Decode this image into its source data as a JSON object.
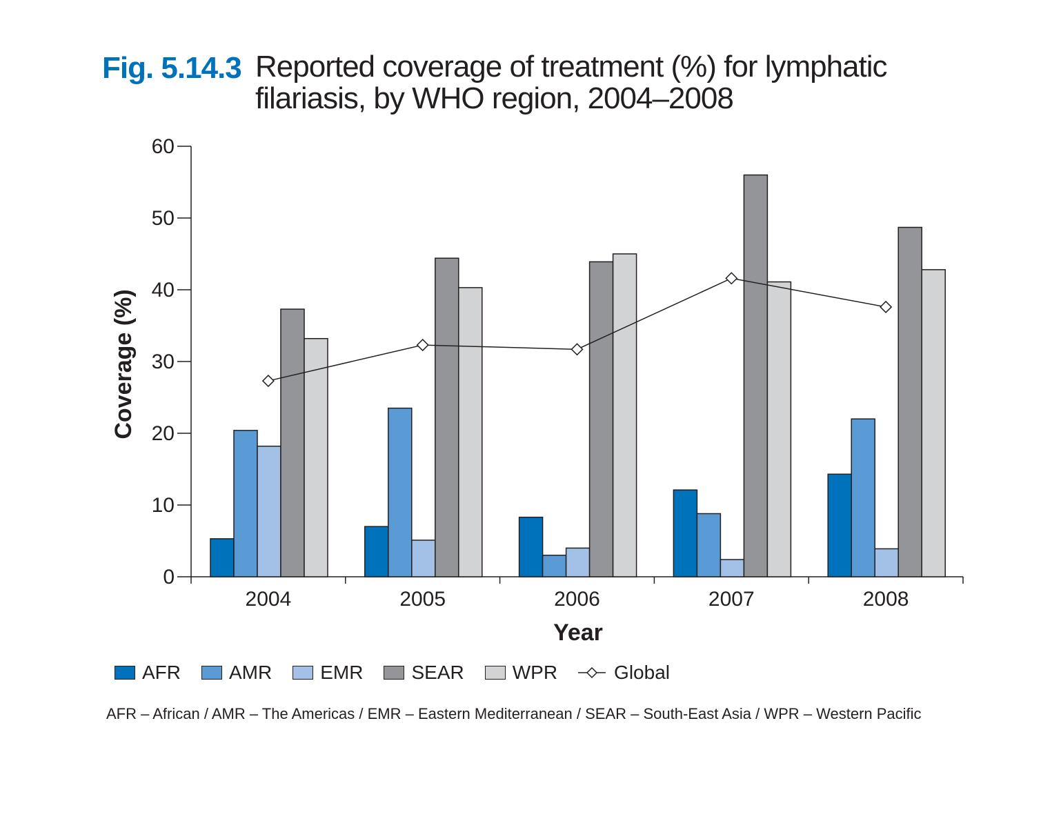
{
  "figure": {
    "number": "Fig. 5.14.3",
    "title": "Reported coverage of treatment (%) for lymphatic filariasis, by WHO region, 2004–2008"
  },
  "chart_data": {
    "type": "bar",
    "categories": [
      "2004",
      "2005",
      "2006",
      "2007",
      "2008"
    ],
    "series": [
      {
        "name": "AFR",
        "kind": "bar",
        "color": "#0072bc",
        "values": [
          5.3,
          7.0,
          8.3,
          12.1,
          14.3
        ]
      },
      {
        "name": "AMR",
        "kind": "bar",
        "color": "#5b9bd5",
        "values": [
          20.4,
          23.5,
          3.0,
          8.8,
          22.0
        ]
      },
      {
        "name": "EMR",
        "kind": "bar",
        "color": "#a3c1e6",
        "values": [
          18.2,
          5.1,
          4.0,
          2.4,
          3.9
        ]
      },
      {
        "name": "SEAR",
        "kind": "bar",
        "color": "#939598",
        "values": [
          37.3,
          44.4,
          43.9,
          56.0,
          48.7
        ]
      },
      {
        "name": "WPR",
        "kind": "bar",
        "color": "#d1d3d4",
        "values": [
          33.2,
          40.3,
          45.0,
          41.1,
          42.8
        ]
      },
      {
        "name": "Global",
        "kind": "line",
        "marker": "diamond",
        "color": "#231f20",
        "values": [
          27.3,
          32.3,
          31.7,
          41.6,
          37.6
        ]
      }
    ],
    "xlabel": "Year",
    "ylabel": "Coverage (%)",
    "ylim": [
      0,
      60
    ],
    "yticks": [
      "0",
      "10",
      "20",
      "30",
      "40",
      "50",
      "60"
    ],
    "grid": false,
    "legend_position": "bottom"
  },
  "footnote": "AFR – African / AMR – The Americas / EMR – Eastern Mediterranean / SEAR – South-East Asia / WPR – Western Pacific"
}
